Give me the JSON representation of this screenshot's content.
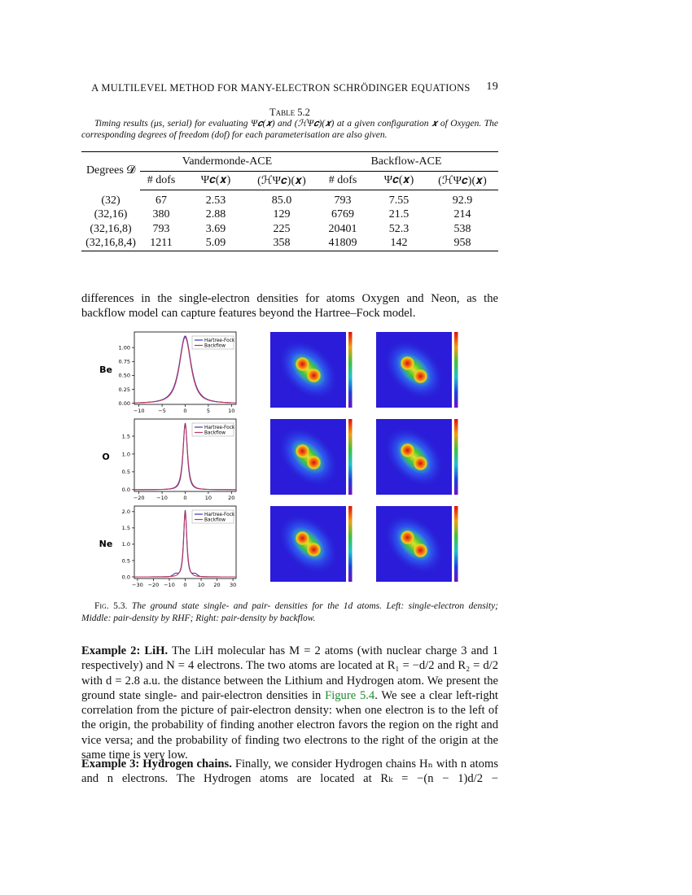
{
  "header": {
    "title": "A MULTILEVEL METHOD FOR MANY-ELECTRON SCHRÖDINGER EQUATIONS",
    "page": "19"
  },
  "table": {
    "label": "Table 5.2",
    "caption": "Timing results (μs, serial) for evaluating Ψ𝒄(𝒙) and (ℋΨ𝒄)(𝒙) at a given configuration 𝒙 of Oxygen. The corresponding degrees of freedom (dof) for each parameterisation are also given.",
    "corner": "Degrees 𝓓",
    "groups": [
      "Vandermonde-ACE",
      "Backflow-ACE"
    ],
    "columns": [
      "# dofs",
      "Ψ𝒄(𝒙)",
      "(ℋΨ𝒄)(𝒙)",
      "# dofs",
      "Ψ𝒄(𝒙)",
      "(ℋΨ𝒄)(𝒙)"
    ],
    "rows": [
      [
        "(32)",
        "67",
        "2.53",
        "85.0",
        "793",
        "7.55",
        "92.9"
      ],
      [
        "(32,16)",
        "380",
        "2.88",
        "129",
        "6769",
        "21.5",
        "214"
      ],
      [
        "(32,16,8)",
        "793",
        "3.69",
        "225",
        "20401",
        "52.3",
        "538"
      ],
      [
        "(32,16,8,4)",
        "1211",
        "5.09",
        "358",
        "41809",
        "142",
        "958"
      ]
    ]
  },
  "para1": "differences in the single-electron densities for atoms Oxygen and Neon, as the backflow model can capture features beyond the Hartree–Fock model.",
  "figure": {
    "series": [
      {
        "name": "Hartree-Fock",
        "color": "#3a3ab8"
      },
      {
        "name": "Backflow",
        "color": "#b8385e"
      }
    ],
    "panels": [
      {
        "label": "Be",
        "xlim": [
          -11,
          11
        ],
        "ylim": [
          -0.02,
          1.28
        ],
        "xticks": [
          {
            "value": -10,
            "label": "−10"
          },
          {
            "value": -5,
            "label": "−5"
          },
          0,
          5,
          10
        ],
        "yticks": [
          {
            "value": 0,
            "label": "0.00"
          },
          0.25,
          {
            "value": 0.5,
            "label": "0.50"
          },
          0.75,
          {
            "value": 1,
            "label": "1.00"
          }
        ]
      },
      {
        "label": "O",
        "xlim": [
          -22,
          22
        ],
        "ylim": [
          -0.05,
          1.98
        ],
        "xticks": [
          {
            "value": -20,
            "label": "−20"
          },
          {
            "value": -10,
            "label": "−10"
          },
          0,
          10,
          20
        ],
        "yticks": [
          {
            "value": 0,
            "label": "0.0"
          },
          0.5,
          {
            "value": 1,
            "label": "1.0"
          },
          1.5
        ]
      },
      {
        "label": "Ne",
        "xlim": [
          -32,
          32
        ],
        "ylim": [
          -0.05,
          2.17
        ],
        "xticks": [
          {
            "value": -30,
            "label": "−30"
          },
          {
            "value": -20,
            "label": "−20"
          },
          {
            "value": -10,
            "label": "−10"
          },
          0,
          10,
          20,
          30
        ],
        "yticks": [
          {
            "value": 0,
            "label": "0.0"
          },
          0.5,
          {
            "value": 1,
            "label": "1.0"
          },
          1.5,
          {
            "value": 2,
            "label": "2.0"
          }
        ]
      }
    ],
    "caption_label": "Fig. 5.3.",
    "caption": "The ground state single- and pair- densities for the 1d atoms. Left: single-electron density; Middle: pair-density by RHF; Right: pair-density by backflow."
  },
  "example2": {
    "lead": "Example 2: LiH.",
    "text": "The LiH molecular has M = 2 atoms (with nuclear charge 3 and 1 respectively) and N = 4 electrons. The two atoms are located at R₁ = −d/2 and R₂ = d/2 with d = 2.8 a.u. the distance between the Lithium and Hydrogen atom. We present the ground state single- and pair-electron densities in",
    "link": "Figure 5.4",
    "tail": ". We see a clear left-right correlation from the picture of pair-electron density: when one electron is to the left of the origin, the probability of finding another electron favors the region on the right and vice versa; and the probability of finding two electrons to the right of the origin at the same time is very low."
  },
  "example3": {
    "lead": "Example 3: Hydrogen chains.",
    "text": "Finally, we consider Hydrogen chains Hₙ with n atoms and n electrons. The Hydrogen atoms are located at Rₖ = −(n − 1)d/2 −"
  }
}
